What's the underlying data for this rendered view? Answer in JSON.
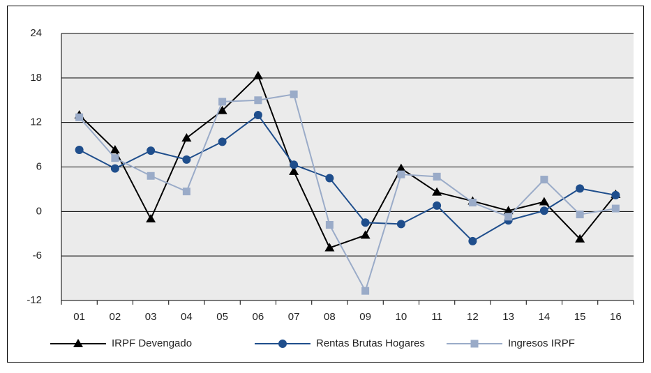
{
  "chart_data": {
    "type": "line",
    "categories": [
      "01",
      "02",
      "03",
      "04",
      "05",
      "06",
      "07",
      "08",
      "09",
      "10",
      "11",
      "12",
      "13",
      "14",
      "15",
      "16"
    ],
    "series": [
      {
        "name": "IRPF Devengado",
        "color": "#000000",
        "marker": "triangle",
        "values": [
          13.0,
          8.3,
          -1.0,
          9.9,
          13.6,
          18.3,
          5.4,
          -4.9,
          -3.2,
          5.8,
          2.6,
          1.4,
          0.1,
          1.3,
          -3.7,
          2.3
        ]
      },
      {
        "name": "Rentas Brutas Hogares",
        "color": "#1f4e8c",
        "marker": "circle",
        "values": [
          8.3,
          5.8,
          8.2,
          7.0,
          9.4,
          13.0,
          6.3,
          4.5,
          -1.5,
          -1.7,
          0.8,
          -4.0,
          -1.2,
          0.1,
          3.1,
          2.2
        ]
      },
      {
        "name": "Ingresos IRPF",
        "color": "#9aabc8",
        "marker": "square",
        "values": [
          12.7,
          7.2,
          4.8,
          2.7,
          14.8,
          15.0,
          15.8,
          -1.8,
          -10.7,
          5.0,
          4.7,
          1.2,
          -0.7,
          4.3,
          -0.4,
          0.4
        ]
      }
    ],
    "ylim": [
      -12,
      24
    ],
    "yticks": [
      -12,
      -6,
      0,
      6,
      12,
      18,
      24
    ],
    "grid": true,
    "legend": "bottom"
  }
}
